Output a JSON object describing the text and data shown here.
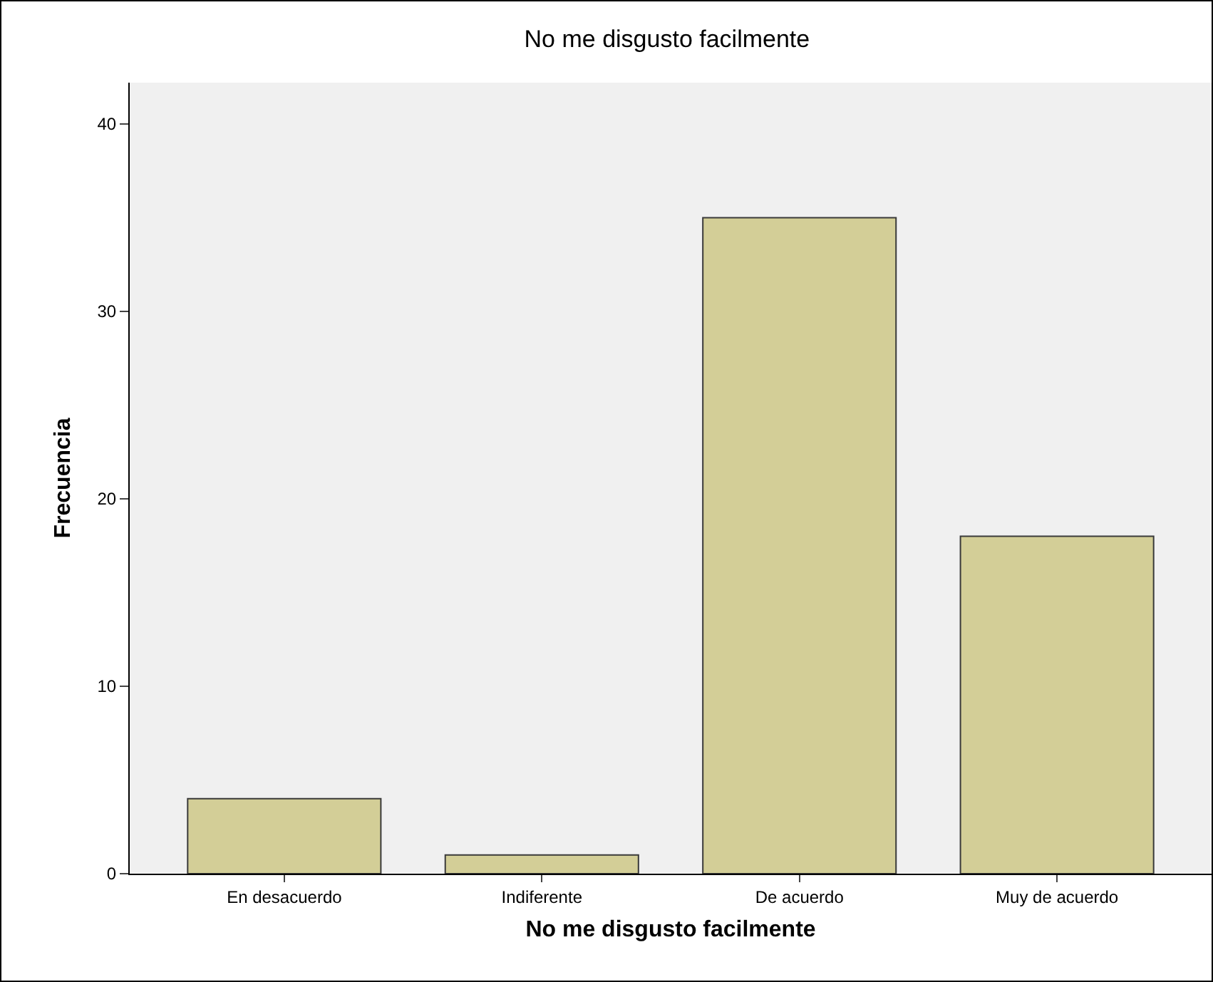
{
  "chart_data": {
    "type": "bar",
    "title": "No me disgusto facilmente",
    "xlabel": "No me disgusto facilmente",
    "ylabel": "Frecuencia",
    "categories": [
      "En desacuerdo",
      "Indiferente",
      "De acuerdo",
      "Muy de acuerdo"
    ],
    "values": [
      4,
      1,
      35,
      18
    ],
    "color": "#d3ce97",
    "ylim": [
      0,
      42.2
    ],
    "yticks": [
      0,
      10,
      20,
      30,
      40
    ]
  }
}
